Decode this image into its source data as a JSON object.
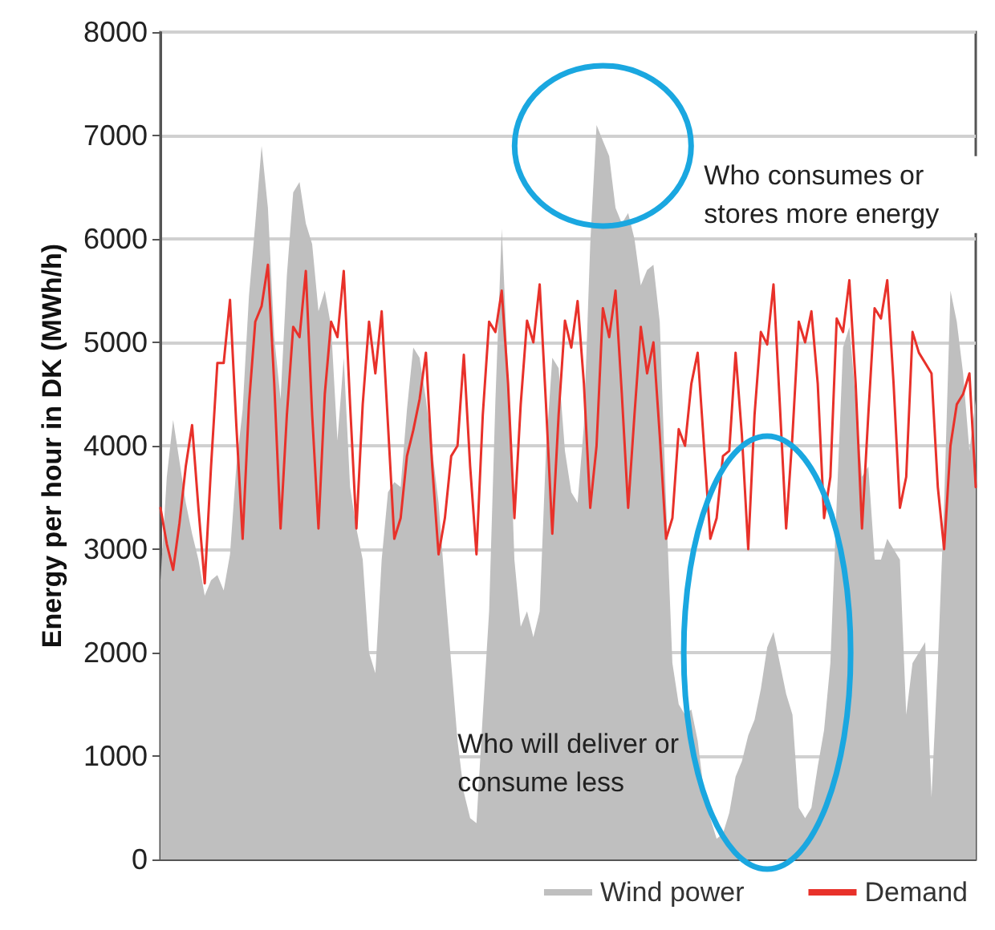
{
  "chart_data": {
    "type": "line",
    "ylabel": "Energy per hour in DK (MWh/h)",
    "categories": [
      null,
      null,
      null,
      null,
      null,
      null,
      null,
      null,
      null,
      null,
      null,
      null,
      null,
      null,
      null,
      null,
      null,
      null,
      null,
      null,
      null,
      null,
      null,
      null,
      null,
      null,
      null,
      null,
      null,
      null,
      null,
      null,
      null,
      null,
      null,
      null,
      null,
      null,
      null,
      null,
      null,
      null,
      null,
      null,
      null,
      null,
      null,
      null,
      null,
      null,
      null,
      null,
      null,
      null,
      null,
      null,
      null,
      null,
      null,
      null,
      null,
      null,
      null,
      null,
      null,
      null,
      null,
      null,
      null,
      null,
      null,
      null,
      null,
      null,
      null,
      null,
      null,
      null,
      null,
      null,
      null,
      null,
      null,
      null,
      null,
      null,
      null,
      null,
      null,
      null,
      null,
      null,
      null,
      null,
      null,
      null,
      null,
      null,
      null,
      null,
      null,
      null,
      null,
      null,
      null,
      null,
      null,
      null,
      null,
      null,
      null,
      null,
      null,
      null,
      null,
      null,
      null,
      null,
      null,
      null,
      null,
      null,
      null,
      null,
      null,
      null,
      null,
      null,
      null,
      null
    ],
    "series": [
      {
        "name": "Wind power",
        "type": "area",
        "color": "#bfbfbf",
        "values": [
          2700,
          3700,
          4250,
          3850,
          3450,
          3150,
          2900,
          2550,
          2700,
          2750,
          2600,
          2950,
          3800,
          4350,
          5450,
          6150,
          6900,
          6300,
          5050,
          4450,
          5650,
          6450,
          6550,
          6150,
          5950,
          5300,
          5500,
          5150,
          4050,
          4850,
          3600,
          3200,
          2900,
          2000,
          1800,
          2900,
          3550,
          3650,
          3600,
          4350,
          4950,
          4850,
          4450,
          3950,
          3450,
          2650,
          1900,
          1150,
          650,
          400,
          350,
          1400,
          2400,
          4450,
          6100,
          4700,
          2900,
          2250,
          2400,
          2150,
          2400,
          3950,
          4850,
          4750,
          3950,
          3550,
          3450,
          4200,
          5950,
          7100,
          6950,
          6800,
          6300,
          6150,
          6250,
          6000,
          5550,
          5700,
          5750,
          5200,
          3450,
          1900,
          1500,
          1400,
          1450,
          1150,
          650,
          400,
          200,
          250,
          450,
          800,
          950,
          1200,
          1350,
          1650,
          2050,
          2200,
          1900,
          1600,
          1400,
          500,
          400,
          500,
          900,
          1250,
          1900,
          3450,
          4950,
          5150,
          4450,
          3700,
          3800,
          2900,
          2900,
          3100,
          3000,
          2900,
          1400,
          1900,
          2000,
          2100,
          600,
          1900,
          3450,
          5500,
          5200,
          4700,
          3950,
          4450
        ]
      },
      {
        "name": "Demand",
        "color": "#e8312a",
        "values": [
          3400,
          3050,
          2800,
          3250,
          3800,
          4200,
          3400,
          2670,
          3800,
          4800,
          4800,
          5410,
          4200,
          3100,
          4400,
          5200,
          5350,
          5750,
          4600,
          3200,
          4300,
          5150,
          5050,
          5690,
          4300,
          3200,
          4500,
          5200,
          5050,
          5690,
          4400,
          3200,
          4400,
          5200,
          4700,
          5300,
          4200,
          3100,
          3300,
          3900,
          4150,
          4450,
          4900,
          3800,
          2950,
          3300,
          3900,
          4000,
          4880,
          3800,
          2950,
          4300,
          5200,
          5100,
          5500,
          4600,
          3300,
          4400,
          5210,
          5000,
          5560,
          4400,
          3150,
          4300,
          5210,
          4950,
          5400,
          4600,
          3400,
          4000,
          5330,
          5050,
          5500,
          4500,
          3400,
          4300,
          5150,
          4700,
          5000,
          4100,
          3100,
          3300,
          4160,
          4000,
          4600,
          4900,
          4000,
          3100,
          3300,
          3900,
          3950,
          4900,
          4100,
          3000,
          4300,
          5100,
          4980,
          5560,
          4400,
          3200,
          4100,
          5200,
          5000,
          5300,
          4600,
          3300,
          3700,
          5230,
          5100,
          5600,
          4600,
          3200,
          4300,
          5330,
          5230,
          5600,
          4600,
          3400,
          3700,
          5100,
          4900,
          4800,
          4700,
          3600,
          3000,
          4000,
          4400,
          4500,
          4700,
          3600
        ]
      }
    ],
    "ylim": [
      0,
      8000
    ],
    "yticks": [
      0,
      1000,
      2000,
      3000,
      4000,
      5000,
      6000,
      7000,
      8000
    ],
    "grid": "y",
    "legend": "bottom right",
    "tick_labels": "y",
    "line_style": "solid",
    "annotations": [
      "Who consumes or stores more energy",
      "Who will deliver or consume less"
    ]
  }
}
